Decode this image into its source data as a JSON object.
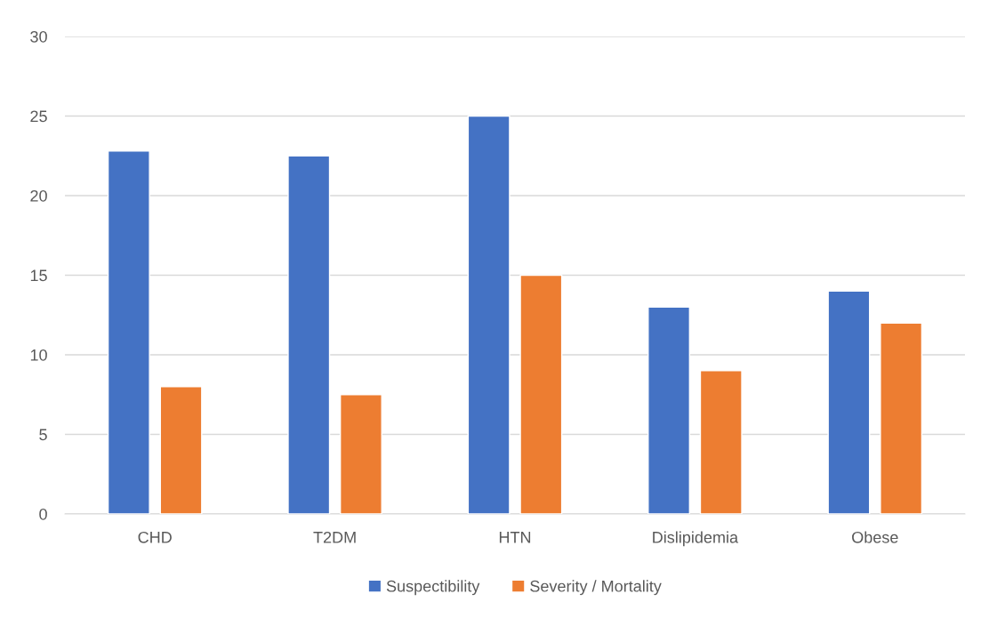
{
  "chart_data": {
    "type": "bar",
    "categories": [
      "CHD",
      "T2DM",
      "HTN",
      "Dislipidemia",
      "Obese"
    ],
    "series": [
      {
        "name": "Suspectibility",
        "color": "#4472c4",
        "values": [
          22.8,
          22.5,
          25,
          13,
          14
        ]
      },
      {
        "name": "Severity / Mortality",
        "color": "#ed7d31",
        "values": [
          8,
          7.5,
          15,
          9,
          12
        ]
      }
    ],
    "ylim": [
      0,
      30
    ],
    "yticks": [
      0,
      5,
      10,
      15,
      20,
      25,
      30
    ],
    "grid": "y",
    "legend": "bottom"
  }
}
